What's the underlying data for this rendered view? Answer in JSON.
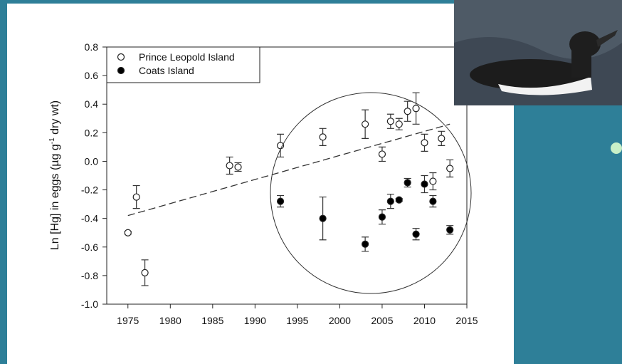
{
  "chart_data": {
    "type": "scatter",
    "y_label": [
      "Ln [Hg] in eggs (µg g",
      "-1",
      " dry wt)"
    ],
    "xlim": [
      1972.5,
      2015
    ],
    "ylim": [
      -1.0,
      0.8
    ],
    "xticks": [
      1975,
      1980,
      1985,
      1990,
      1995,
      2000,
      2005,
      2010,
      2015
    ],
    "yticks": [
      {
        "value": -1.0,
        "label": "-1.0"
      },
      -0.8,
      -0.6,
      -0.4,
      -0.2,
      {
        "value": 0,
        "label": "0.0"
      },
      0.2,
      0.4,
      0.6,
      0.8
    ],
    "legend": "top-left",
    "series": [
      {
        "name": "Prince Leopold Island",
        "color": "#ffffff",
        "x": [
          1975,
          1976,
          1977,
          1987,
          1988,
          1993,
          1998,
          2003,
          2005,
          2006,
          2007,
          2008,
          2009,
          2010,
          2011,
          2012,
          2013
        ],
        "values": [
          -0.5,
          -0.25,
          -0.78,
          -0.03,
          -0.04,
          0.11,
          0.17,
          0.26,
          0.05,
          0.28,
          0.26,
          0.35,
          0.37,
          0.13,
          -0.14,
          0.16,
          -0.05
        ],
        "errors": [
          0.01,
          0.08,
          0.09,
          0.06,
          0.03,
          0.08,
          0.06,
          0.1,
          0.05,
          0.05,
          0.04,
          0.07,
          0.11,
          0.06,
          0.06,
          0.05,
          0.06
        ]
      },
      {
        "name": "Coats Island",
        "color": "#000000",
        "x": [
          1993,
          1998,
          2003,
          2005,
          2006,
          2007,
          2008,
          2009,
          2010,
          2011,
          2013
        ],
        "values": [
          -0.28,
          -0.4,
          -0.58,
          -0.39,
          -0.28,
          -0.27,
          -0.15,
          -0.51,
          -0.16,
          -0.28,
          -0.48
        ],
        "errors": [
          0.04,
          0.15,
          0.05,
          0.05,
          0.05,
          0.01,
          0.03,
          0.04,
          0.06,
          0.04,
          0.03
        ]
      }
    ],
    "trend": {
      "x": [
        1975,
        2013
      ],
      "values": [
        -0.38,
        0.26
      ]
    }
  }
}
